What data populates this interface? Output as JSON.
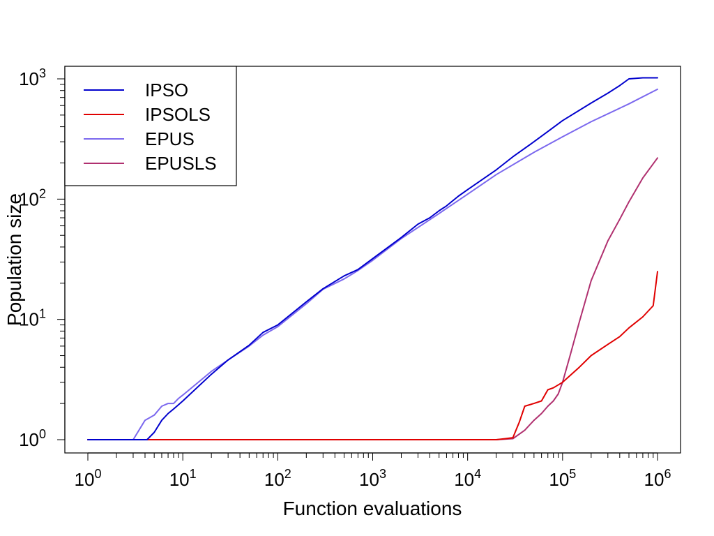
{
  "chart_data": {
    "type": "line",
    "title": "",
    "xlabel": "Function evaluations",
    "ylabel": "Population size",
    "x_scale": "log",
    "y_scale": "log",
    "xlim": [
      1,
      1000000
    ],
    "ylim": [
      1,
      1000
    ],
    "grid": false,
    "legend_position": "top-left",
    "x_ticks": [
      {
        "base": "10",
        "exp": "0",
        "value": 1
      },
      {
        "base": "10",
        "exp": "1",
        "value": 10
      },
      {
        "base": "10",
        "exp": "2",
        "value": 100
      },
      {
        "base": "10",
        "exp": "3",
        "value": 1000
      },
      {
        "base": "10",
        "exp": "4",
        "value": 10000
      },
      {
        "base": "10",
        "exp": "5",
        "value": 100000
      },
      {
        "base": "10",
        "exp": "6",
        "value": 1000000
      }
    ],
    "y_ticks": [
      {
        "base": "10",
        "exp": "0",
        "value": 1
      },
      {
        "base": "10",
        "exp": "1",
        "value": 10
      },
      {
        "base": "10",
        "exp": "2",
        "value": 100
      },
      {
        "base": "10",
        "exp": "3",
        "value": 1000
      }
    ],
    "series": [
      {
        "name": "IPSO",
        "color": "#0000cd",
        "x": [
          1,
          3,
          4.2,
          5,
          6,
          7,
          8,
          9,
          10,
          20,
          30,
          50,
          70,
          100,
          200,
          300,
          500,
          700,
          1000,
          2000,
          3000,
          4000,
          5000,
          6000,
          8000,
          10000,
          20000,
          30000,
          50000,
          70000,
          100000,
          200000,
          300000,
          400000,
          500000,
          700000,
          1000000
        ],
        "y": [
          1,
          1,
          1,
          1.15,
          1.45,
          1.65,
          1.8,
          1.95,
          2.1,
          3.5,
          4.6,
          6.1,
          7.8,
          9,
          14,
          18,
          23,
          26,
          32,
          48,
          62,
          70,
          80,
          88,
          106,
          120,
          175,
          225,
          300,
          365,
          450,
          630,
          760,
          880,
          1000,
          1020,
          1020
        ]
      },
      {
        "name": "IPSOLS",
        "color": "#e00000",
        "x": [
          1,
          1000,
          10000,
          20000,
          25000,
          30000,
          35000,
          40000,
          50000,
          60000,
          70000,
          80000,
          100000,
          150000,
          200000,
          300000,
          400000,
          500000,
          700000,
          900000,
          1000000
        ],
        "y": [
          1,
          1,
          1,
          1,
          1.02,
          1.04,
          1.4,
          1.9,
          2.0,
          2.1,
          2.6,
          2.7,
          3.0,
          4.0,
          5.0,
          6.2,
          7.2,
          8.5,
          10.5,
          13,
          25
        ]
      },
      {
        "name": "EPUS",
        "color": "#7b68ee",
        "x": [
          1,
          2,
          3,
          4,
          5,
          6,
          7,
          8,
          9,
          10,
          20,
          30,
          50,
          70,
          100,
          200,
          300,
          500,
          700,
          1000,
          2000,
          5000,
          10000,
          20000,
          50000,
          100000,
          200000,
          500000,
          1000000
        ],
        "y": [
          1,
          1,
          1,
          1.45,
          1.6,
          1.9,
          2.0,
          2.0,
          2.2,
          2.35,
          3.7,
          4.6,
          6.0,
          7.4,
          8.7,
          13.5,
          17.8,
          21.7,
          25.5,
          31,
          47,
          76,
          110,
          160,
          245,
          330,
          440,
          620,
          820
        ]
      },
      {
        "name": "EPUSLS",
        "color": "#b0306f",
        "x": [
          1,
          1000,
          10000,
          20000,
          30000,
          40000,
          50000,
          60000,
          70000,
          80000,
          90000,
          100000,
          120000,
          150000,
          200000,
          300000,
          400000,
          500000,
          700000,
          1000000
        ],
        "y": [
          1,
          1,
          1,
          1,
          1.02,
          1.2,
          1.45,
          1.65,
          1.9,
          2.1,
          2.4,
          3.0,
          5.0,
          9.5,
          21,
          45,
          68,
          95,
          150,
          220
        ]
      }
    ]
  }
}
